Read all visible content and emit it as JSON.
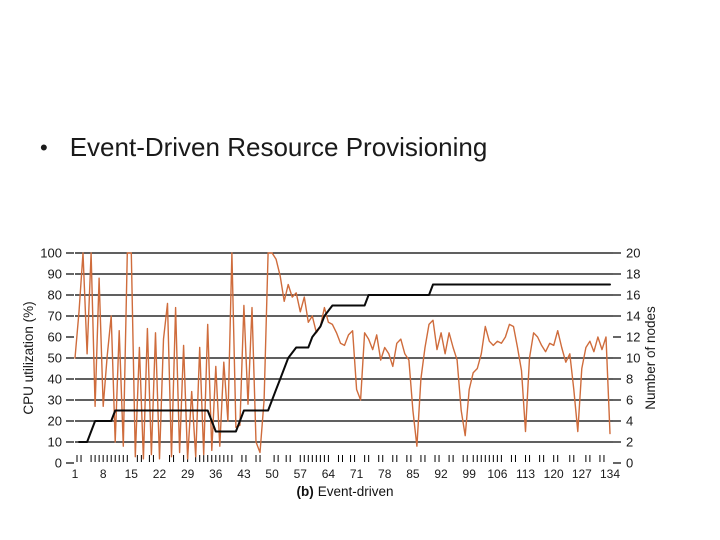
{
  "slide": {
    "bullet": "•",
    "title": "Event-Driven Resource Provisioning"
  },
  "chart_data": {
    "type": "line",
    "caption_prefix": "(b)",
    "caption": "Event-driven",
    "x": {
      "min": 1,
      "max": 134,
      "tick_labels": [
        1,
        8,
        15,
        22,
        29,
        36,
        43,
        50,
        57,
        64,
        71,
        78,
        85,
        92,
        99,
        106,
        113,
        120,
        127,
        134
      ],
      "minor_ticks": [
        1.5,
        2.5,
        5,
        6,
        7,
        8,
        9,
        10,
        11,
        12,
        13,
        14,
        16.5,
        17.5,
        19.5,
        20.5,
        24.5,
        25.5,
        28,
        29,
        31,
        32,
        33,
        34,
        35,
        36,
        37,
        38,
        39,
        40,
        42.5,
        43.5,
        46,
        47,
        50.5,
        51.5,
        53.5,
        54.5,
        57,
        58,
        59,
        60,
        61,
        62,
        63,
        64,
        66.5,
        67.5,
        69.5,
        70.5,
        73,
        74,
        76.5,
        77.5,
        80,
        81,
        83.5,
        84.5,
        87,
        88,
        90.5,
        91.5,
        94,
        95,
        97.5,
        98.5,
        100,
        101,
        102,
        103,
        104,
        105,
        106,
        107,
        109.5,
        110.5,
        113,
        114,
        116.5,
        117.5,
        120,
        121,
        124,
        125,
        128,
        129,
        131.5,
        132.5
      ]
    },
    "y_left": {
      "label": "CPU utilization (%)",
      "min": 0,
      "max": 100,
      "ticks": [
        0,
        10,
        20,
        30,
        40,
        50,
        60,
        70,
        80,
        90,
        100
      ],
      "gridlines": [
        10,
        20,
        30,
        40,
        50,
        70,
        80,
        90,
        100
      ]
    },
    "y_right": {
      "label": "Number of nodes",
      "min": 0,
      "max": 20,
      "ticks": [
        0,
        2,
        4,
        6,
        8,
        10,
        12,
        14,
        16,
        18,
        20
      ]
    },
    "series": [
      {
        "name": "CPU utilization",
        "axis": "left",
        "color": "#cf6c3c",
        "x_start": 1,
        "x_step": 1,
        "values": [
          50,
          72,
          100,
          52,
          100,
          27,
          88,
          27,
          51,
          70,
          10,
          63,
          8,
          100,
          100,
          3,
          55,
          2,
          64,
          4,
          62,
          2,
          59,
          76,
          3,
          74,
          5,
          56,
          2,
          34,
          3,
          55,
          4,
          66,
          6,
          46,
          8,
          48,
          20,
          100,
          17,
          18,
          75,
          28,
          74,
          10,
          5,
          30,
          100,
          100,
          97,
          89,
          77,
          85,
          79,
          81,
          72,
          79,
          67,
          70,
          62,
          65,
          74,
          67,
          66,
          62,
          57,
          56,
          61,
          63,
          35,
          30,
          62,
          59,
          54,
          61,
          49,
          55,
          52,
          46,
          57,
          59,
          52,
          49,
          25,
          8,
          40,
          55,
          66,
          68,
          54,
          62,
          52,
          62,
          55,
          49,
          25,
          13,
          35,
          43,
          45,
          52,
          65,
          58,
          56,
          58,
          57,
          60,
          66,
          65,
          55,
          44,
          15,
          50,
          62,
          60,
          56,
          53,
          57,
          56,
          63,
          55,
          48,
          52,
          35,
          15,
          45,
          55,
          58,
          53,
          60,
          54,
          60,
          14
        ]
      },
      {
        "name": "Number of nodes",
        "axis": "right",
        "color": "#0a0a0a",
        "points": [
          [
            2,
            2
          ],
          [
            4,
            2
          ],
          [
            6,
            4
          ],
          [
            10,
            4
          ],
          [
            11,
            5
          ],
          [
            34,
            5
          ],
          [
            36,
            3
          ],
          [
            41,
            3
          ],
          [
            43,
            5
          ],
          [
            49,
            5
          ],
          [
            50,
            6
          ],
          [
            51,
            7
          ],
          [
            52,
            8
          ],
          [
            53,
            9
          ],
          [
            54,
            10
          ],
          [
            56,
            11
          ],
          [
            59,
            11
          ],
          [
            60,
            12
          ],
          [
            62,
            13
          ],
          [
            63,
            14
          ],
          [
            65,
            15
          ],
          [
            73,
            15
          ],
          [
            74,
            16
          ],
          [
            89,
            16
          ],
          [
            90,
            17
          ],
          [
            134,
            17
          ]
        ]
      }
    ],
    "grid_color": "#000000",
    "label_color": "#1a1a1a"
  }
}
